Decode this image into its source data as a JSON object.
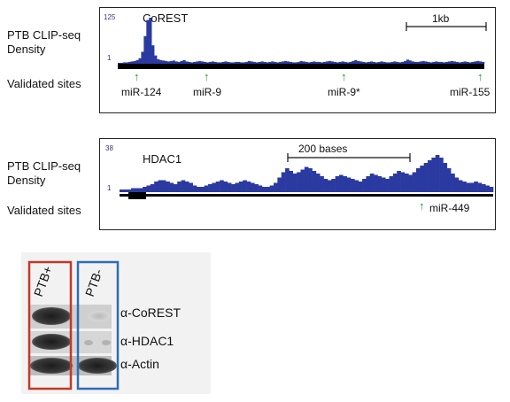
{
  "row_labels": {
    "density": [
      "PTB CLIP-seq",
      "Density"
    ],
    "validated": "Validated sites"
  },
  "corest_panel": {
    "gene": "CoREST",
    "ymax": "125",
    "ymin": "1",
    "scale_bar": "1kb",
    "sites": [
      "miR-124",
      "miR-9",
      "miR-9*",
      "miR-155"
    ],
    "density_profile": [
      2,
      2,
      3,
      3,
      4,
      5,
      6,
      8,
      12,
      26,
      60,
      95,
      100,
      40,
      18,
      10,
      8,
      7,
      6,
      5,
      6,
      7,
      5,
      4,
      6,
      8,
      5,
      4,
      3,
      4,
      5,
      6,
      5,
      4,
      3,
      4,
      5,
      4,
      3,
      3,
      4,
      5,
      4,
      3,
      3,
      4,
      4,
      3,
      3,
      4,
      6,
      5,
      4,
      3,
      4,
      5,
      4,
      3,
      4,
      5,
      4,
      3,
      4,
      5,
      6,
      5,
      4,
      3,
      3,
      4,
      6,
      5,
      4,
      3,
      4,
      5,
      4,
      4,
      3,
      4,
      5,
      6,
      5,
      4,
      3,
      4,
      5,
      4,
      3,
      4,
      6,
      8,
      6,
      5,
      4,
      3,
      4,
      5,
      4,
      3,
      4,
      5,
      4,
      3,
      3,
      4,
      5,
      4,
      3,
      4,
      6,
      9,
      7,
      5,
      4,
      4,
      5,
      6,
      5,
      4,
      3,
      4,
      5,
      4,
      4,
      3,
      4,
      5,
      6,
      5,
      4,
      3,
      4,
      5,
      4,
      3,
      4,
      5,
      6,
      5,
      4
    ]
  },
  "hdac1_panel": {
    "gene": "HDAC1",
    "ymax": "38",
    "ymin": "1",
    "scale_bar": "200 bases",
    "sites": [
      "miR-449"
    ],
    "density_profile": [
      2,
      2,
      2,
      3,
      3,
      3,
      4,
      5,
      6,
      8,
      9,
      9,
      8,
      7,
      6,
      8,
      9,
      8,
      7,
      5,
      4,
      4,
      5,
      6,
      7,
      8,
      9,
      8,
      7,
      6,
      7,
      8,
      9,
      8,
      7,
      6,
      5,
      4,
      4,
      5,
      7,
      11,
      15,
      18,
      16,
      14,
      15,
      17,
      19,
      18,
      16,
      14,
      12,
      10,
      9,
      10,
      12,
      13,
      12,
      11,
      10,
      9,
      8,
      10,
      12,
      14,
      13,
      12,
      11,
      10,
      12,
      14,
      16,
      15,
      14,
      13,
      15,
      18,
      20,
      22,
      24,
      26,
      28,
      26,
      22,
      18,
      14,
      11,
      9,
      8,
      7,
      7,
      8,
      7,
      6,
      5,
      4
    ]
  },
  "western_blot": {
    "lanes": [
      "PTB+",
      "PTB-"
    ],
    "antibodies": [
      "α-CoREST",
      "α-HDAC1",
      "α-Actin"
    ],
    "lane_box_colors": [
      "#c0392b",
      "#2e6db5"
    ]
  }
}
